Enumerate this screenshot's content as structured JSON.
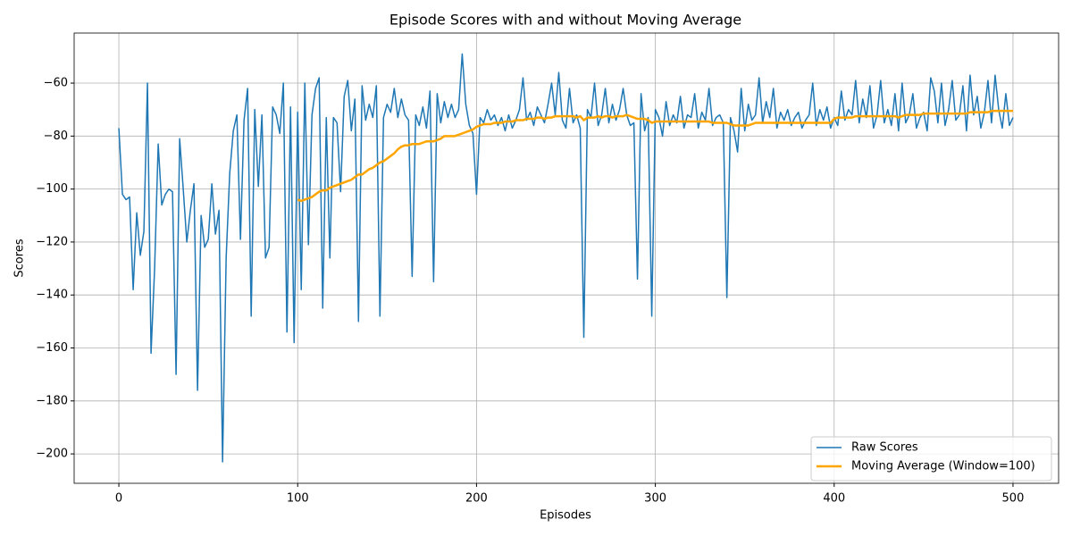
{
  "chart_data": {
    "type": "line",
    "title": "Episode Scores with and without Moving Average",
    "xlabel": "Episodes",
    "ylabel": "Scores",
    "x": [
      0,
      2,
      4,
      6,
      8,
      10,
      12,
      14,
      16,
      18,
      20,
      22,
      24,
      26,
      28,
      30,
      32,
      34,
      36,
      38,
      40,
      42,
      44,
      46,
      48,
      50,
      52,
      54,
      56,
      58,
      60,
      62,
      64,
      66,
      68,
      70,
      72,
      74,
      76,
      78,
      80,
      82,
      84,
      86,
      88,
      90,
      92,
      94,
      96,
      98,
      100,
      102,
      104,
      106,
      108,
      110,
      112,
      114,
      116,
      118,
      120,
      122,
      124,
      126,
      128,
      130,
      132,
      134,
      136,
      138,
      140,
      142,
      144,
      146,
      148,
      150,
      152,
      154,
      156,
      158,
      160,
      162,
      164,
      166,
      168,
      170,
      172,
      174,
      176,
      178,
      180,
      182,
      184,
      186,
      188,
      190,
      192,
      194,
      196,
      198,
      200,
      202,
      204,
      206,
      208,
      210,
      212,
      214,
      216,
      218,
      220,
      222,
      224,
      226,
      228,
      230,
      232,
      234,
      236,
      238,
      240,
      242,
      244,
      246,
      248,
      250,
      252,
      254,
      256,
      258,
      260,
      262,
      264,
      266,
      268,
      270,
      272,
      274,
      276,
      278,
      280,
      282,
      284,
      286,
      288,
      290,
      292,
      294,
      296,
      298,
      300,
      302,
      304,
      306,
      308,
      310,
      312,
      314,
      316,
      318,
      320,
      322,
      324,
      326,
      328,
      330,
      332,
      334,
      336,
      338,
      340,
      342,
      344,
      346,
      348,
      350,
      352,
      354,
      356,
      358,
      360,
      362,
      364,
      366,
      368,
      370,
      372,
      374,
      376,
      378,
      380,
      382,
      384,
      386,
      388,
      390,
      392,
      394,
      396,
      398,
      400,
      402,
      404,
      406,
      408,
      410,
      412,
      414,
      416,
      418,
      420,
      422,
      424,
      426,
      428,
      430,
      432,
      434,
      436,
      438,
      440,
      442,
      444,
      446,
      448,
      450,
      452,
      454,
      456,
      458,
      460,
      462,
      464,
      466,
      468,
      470,
      472,
      474,
      476,
      478,
      480,
      482,
      484,
      486,
      488,
      490,
      492,
      494,
      496,
      498,
      500
    ],
    "series": [
      {
        "name": "Raw Scores",
        "color": "#1f77b4",
        "width": 1.5,
        "values": [
          -77,
          -102,
          -104,
          -103,
          -138,
          -109,
          -125,
          -116,
          -60,
          -162,
          -130,
          -83,
          -106,
          -102,
          -100,
          -101,
          -170,
          -81,
          -100,
          -120,
          -108,
          -98,
          -176,
          -110,
          -122,
          -119,
          -98,
          -117,
          -108,
          -203,
          -126,
          -94,
          -78,
          -72,
          -119,
          -74,
          -62,
          -148,
          -70,
          -99,
          -72,
          -126,
          -122,
          -69,
          -72,
          -79,
          -60,
          -154,
          -69,
          -158,
          -71,
          -138,
          -60,
          -121,
          -72,
          -62,
          -58,
          -145,
          -73,
          -126,
          -73,
          -75,
          -101,
          -65,
          -59,
          -78,
          -66,
          -150,
          -61,
          -74,
          -68,
          -73,
          -61,
          -148,
          -73,
          -68,
          -71,
          -62,
          -73,
          -66,
          -72,
          -74,
          -133,
          -72,
          -76,
          -69,
          -77,
          -63,
          -135,
          -64,
          -75,
          -67,
          -73,
          -68,
          -73,
          -70,
          -49,
          -68,
          -76,
          -79,
          -102,
          -73,
          -75,
          -70,
          -74,
          -72,
          -76,
          -73,
          -78,
          -72,
          -77,
          -74,
          -70,
          -58,
          -74,
          -71,
          -76,
          -69,
          -72,
          -75,
          -68,
          -60,
          -72,
          -56,
          -74,
          -77,
          -62,
          -75,
          -72,
          -77,
          -156,
          -70,
          -73,
          -60,
          -76,
          -72,
          -62,
          -75,
          -68,
          -74,
          -70,
          -62,
          -72,
          -76,
          -75,
          -134,
          -64,
          -78,
          -73,
          -148,
          -70,
          -73,
          -80,
          -67,
          -76,
          -72,
          -75,
          -65,
          -77,
          -72,
          -73,
          -64,
          -77,
          -71,
          -74,
          -62,
          -76,
          -73,
          -72,
          -75,
          -141,
          -73,
          -78,
          -86,
          -62,
          -78,
          -68,
          -74,
          -72,
          -58,
          -75,
          -67,
          -73,
          -62,
          -77,
          -71,
          -74,
          -70,
          -76,
          -73,
          -71,
          -77,
          -74,
          -72,
          -60,
          -76,
          -70,
          -74,
          -69,
          -77,
          -73,
          -76,
          -63,
          -74,
          -70,
          -72,
          -59,
          -75,
          -66,
          -73,
          -61,
          -77,
          -72,
          -59,
          -75,
          -70,
          -76,
          -64,
          -78,
          -60,
          -75,
          -72,
          -64,
          -77,
          -73,
          -71,
          -78,
          -58,
          -63,
          -75,
          -60,
          -76,
          -70,
          -59,
          -74,
          -72,
          -61,
          -78,
          -57,
          -72,
          -65,
          -77,
          -71,
          -59,
          -75,
          -57,
          -70,
          -77,
          -64,
          -76,
          -73
        ]
      },
      {
        "name": "Moving Average (Window=100)",
        "color": "#ffa500",
        "width": 2.5,
        "values": [
          null,
          null,
          null,
          null,
          null,
          null,
          null,
          null,
          null,
          null,
          null,
          null,
          null,
          null,
          null,
          null,
          null,
          null,
          null,
          null,
          null,
          null,
          null,
          null,
          null,
          null,
          null,
          null,
          null,
          null,
          null,
          null,
          null,
          null,
          null,
          null,
          null,
          null,
          null,
          null,
          null,
          null,
          null,
          null,
          null,
          null,
          null,
          null,
          null,
          null,
          -104,
          -104.5,
          -104,
          -103.5,
          -103,
          -102,
          -101,
          -100.5,
          -100.5,
          -99.5,
          -99,
          -98.5,
          -98,
          -97.5,
          -97,
          -96.5,
          -95.5,
          -94.5,
          -94.5,
          -93.5,
          -92.5,
          -92,
          -91,
          -90,
          -89.5,
          -88.5,
          -87.5,
          -86.5,
          -85,
          -84,
          -83.5,
          -83.5,
          -83,
          -83,
          -83,
          -82.5,
          -82,
          -82,
          -82,
          -81.5,
          -81,
          -80,
          -80,
          -80,
          -80,
          -79.5,
          -79,
          -78.5,
          -78,
          -77.5,
          -76.5,
          -76,
          -75.5,
          -75.5,
          -75.5,
          -75,
          -75,
          -75,
          -74.5,
          -74.5,
          -74.5,
          -74,
          -74,
          -74,
          -73.5,
          -73.5,
          -73.5,
          -73,
          -73,
          -73.5,
          -73,
          -73,
          -72.5,
          -72.5,
          -72.5,
          -72.5,
          -72.5,
          -72.5,
          -73,
          -72.5,
          -74,
          -73,
          -73,
          -73,
          -72.5,
          -73,
          -72.5,
          -72.5,
          -73,
          -72.5,
          -72.5,
          -72.5,
          -72,
          -72.5,
          -73,
          -73.5,
          -73.5,
          -73.5,
          -74,
          -75,
          -74.5,
          -74.5,
          -74.5,
          -74.5,
          -74.5,
          -74.5,
          -74.5,
          -74.5,
          -74.5,
          -74.5,
          -74.5,
          -74.5,
          -74.5,
          -74.5,
          -74.5,
          -74.5,
          -75,
          -75,
          -75,
          -75,
          -75,
          -75.5,
          -76,
          -76,
          -76,
          -76,
          -76,
          -75.5,
          -75,
          -75,
          -75,
          -75,
          -75,
          -75,
          -75,
          -75,
          -75,
          -75,
          -75,
          -75,
          -75,
          -75,
          -75,
          -75,
          -75,
          -75,
          -75,
          -75,
          -75,
          -75,
          -73.5,
          -73,
          -73,
          -73,
          -73,
          -73,
          -72.5,
          -72.5,
          -72.5,
          -72.5,
          -72.5,
          -72.5,
          -72.5,
          -72.5,
          -72.5,
          -72.5,
          -72.5,
          -72.5,
          -73,
          -72.5,
          -72,
          -72,
          -72,
          -72,
          -72,
          -71.5,
          -71.5,
          -71.5,
          -71.5,
          -71.5,
          -71.5,
          -71.5,
          -71.5,
          -71.5,
          -71.5,
          -71.5,
          -71.5,
          -71.5,
          -71,
          -71,
          -71,
          -71,
          -71,
          -71,
          -70.5,
          -70.5,
          -70.5,
          -70.5,
          -70.5,
          -70.5,
          -70.5
        ]
      }
    ],
    "xlim": [
      -25,
      525.5
    ],
    "ylim": [
      -211.1,
      -41.1
    ],
    "xticks": [
      0,
      100,
      200,
      300,
      400,
      500
    ],
    "yticks": [
      {
        "value": -200,
        "label": "−200"
      },
      {
        "value": -180,
        "label": "−180"
      },
      {
        "value": -160,
        "label": "−160"
      },
      {
        "value": -140,
        "label": "−140"
      },
      {
        "value": -120,
        "label": "−120"
      },
      {
        "value": -100,
        "label": "−100"
      },
      {
        "value": -80,
        "label": "−80"
      },
      {
        "value": -60,
        "label": "−60"
      }
    ],
    "grid": true,
    "legend": "lower right"
  }
}
